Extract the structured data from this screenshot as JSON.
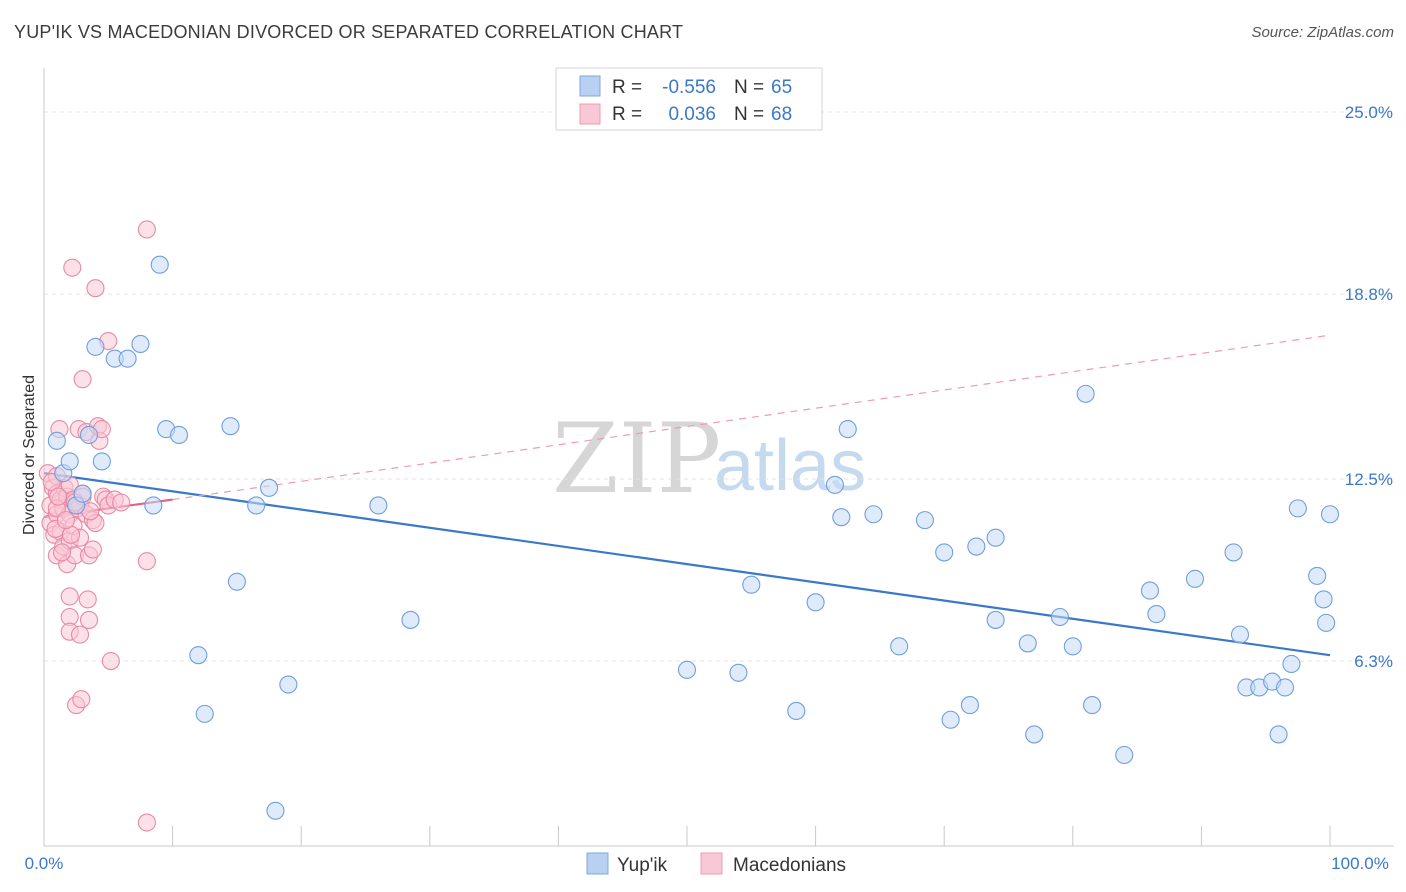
{
  "title": "YUP'IK VS MACEDONIAN DIVORCED OR SEPARATED CORRELATION CHART",
  "source": "Source: ZipAtlas.com",
  "watermark": {
    "zip": "ZIP",
    "atlas": "atlas"
  },
  "colors": {
    "blue": "#3a78c9",
    "blue_fill": "#b8d0f2",
    "pink": "#e8607f",
    "pink_fill": "#f5b8c9",
    "grid": "#e3e3e3"
  },
  "legend": {
    "r_label": "R =",
    "n_label": "N =",
    "blue": {
      "r": "-0.556",
      "n": "65"
    },
    "pink": {
      "r": "0.036",
      "n": "68"
    }
  },
  "chart_data": {
    "type": "scatter",
    "title": "YUP'IK VS MACEDONIAN DIVORCED OR SEPARATED CORRELATION CHART",
    "xlabel": "",
    "ylabel": "Divorced or Separated",
    "xlim": [
      0,
      100
    ],
    "ylim": [
      0,
      26.5
    ],
    "x_tick_labels": [
      "0.0%",
      "100.0%"
    ],
    "y_ticks": [
      6.3,
      12.5,
      18.8,
      25.0
    ],
    "y_tick_labels": [
      "6.3%",
      "12.5%",
      "18.8%",
      "25.0%"
    ],
    "grid": true,
    "legend_position": "bottom",
    "series": [
      {
        "name": "Yup'ik",
        "color": "#3a78c9",
        "trend": {
          "x0": 0,
          "y0": 12.7,
          "x1": 100,
          "y1": 6.5
        },
        "points": [
          [
            1,
            13.8
          ],
          [
            1.5,
            12.7
          ],
          [
            2,
            13.1
          ],
          [
            2.5,
            11.6
          ],
          [
            3,
            12.0
          ],
          [
            3.5,
            14.0
          ],
          [
            4,
            17.0
          ],
          [
            4.5,
            13.1
          ],
          [
            5.5,
            16.6
          ],
          [
            6.5,
            16.6
          ],
          [
            7.5,
            17.1
          ],
          [
            8.5,
            11.6
          ],
          [
            9,
            19.8
          ],
          [
            9.5,
            14.2
          ],
          [
            10.5,
            14.0
          ],
          [
            12,
            6.5
          ],
          [
            12.5,
            4.5
          ],
          [
            14.5,
            14.3
          ],
          [
            15,
            9.0
          ],
          [
            16.5,
            11.6
          ],
          [
            17.5,
            12.2
          ],
          [
            18,
            1.2
          ],
          [
            19,
            5.5
          ],
          [
            26,
            11.6
          ],
          [
            28.5,
            7.7
          ],
          [
            50,
            6.0
          ],
          [
            55,
            8.9
          ],
          [
            58.5,
            4.6
          ],
          [
            60,
            8.3
          ],
          [
            61.5,
            12.3
          ],
          [
            62,
            11.2
          ],
          [
            62.5,
            14.2
          ],
          [
            64.5,
            11.3
          ],
          [
            66.5,
            6.8
          ],
          [
            68.5,
            11.1
          ],
          [
            70,
            10.0
          ],
          [
            70.5,
            4.3
          ],
          [
            72,
            4.8
          ],
          [
            72.5,
            10.2
          ],
          [
            74,
            7.7
          ],
          [
            76.5,
            6.9
          ],
          [
            77,
            3.8
          ],
          [
            79,
            7.8
          ],
          [
            80,
            6.8
          ],
          [
            81,
            15.4
          ],
          [
            81.5,
            4.8
          ],
          [
            84,
            3.1
          ],
          [
            86,
            8.7
          ],
          [
            86.5,
            7.9
          ],
          [
            89.5,
            9.1
          ],
          [
            92.5,
            10.0
          ],
          [
            93,
            7.2
          ],
          [
            93.5,
            5.4
          ],
          [
            94.5,
            5.4
          ],
          [
            95.5,
            5.6
          ],
          [
            96,
            3.8
          ],
          [
            96.5,
            5.4
          ],
          [
            97,
            6.2
          ],
          [
            99,
            9.2
          ],
          [
            99.5,
            8.4
          ],
          [
            99.7,
            7.6
          ],
          [
            100,
            11.3
          ],
          [
            97.5,
            11.5
          ],
          [
            74,
            10.5
          ],
          [
            54,
            5.9
          ]
        ]
      },
      {
        "name": "Macedonians",
        "color": "#e8607f",
        "trend": {
          "x0": 0,
          "y0": 11.2,
          "x1": 10,
          "y1": 11.8
        },
        "trend_extended": {
          "x0": 10,
          "y0": 11.8,
          "x1": 100,
          "y1": 17.4
        },
        "points": [
          [
            0.3,
            12.7
          ],
          [
            0.5,
            11.6
          ],
          [
            0.5,
            11.0
          ],
          [
            0.7,
            12.2
          ],
          [
            0.8,
            10.6
          ],
          [
            1,
            12.0
          ],
          [
            1,
            11.3
          ],
          [
            1,
            9.9
          ],
          [
            1,
            12.6
          ],
          [
            1.2,
            14.2
          ],
          [
            1.3,
            11.8
          ],
          [
            1.3,
            10.7
          ],
          [
            1.5,
            11.5
          ],
          [
            1.5,
            10.2
          ],
          [
            1.6,
            12.2
          ],
          [
            1.8,
            11.9
          ],
          [
            1.8,
            9.6
          ],
          [
            2,
            11.3
          ],
          [
            2,
            10.4
          ],
          [
            2,
            8.5
          ],
          [
            2,
            7.8
          ],
          [
            2,
            7.3
          ],
          [
            2,
            12.3
          ],
          [
            2.2,
            19.7
          ],
          [
            2.3,
            11.8
          ],
          [
            2.3,
            10.9
          ],
          [
            2.4,
            9.9
          ],
          [
            2.5,
            4.8
          ],
          [
            2.6,
            11.5
          ],
          [
            2.7,
            14.2
          ],
          [
            2.8,
            11.6
          ],
          [
            2.8,
            10.5
          ],
          [
            2.8,
            7.2
          ],
          [
            2.9,
            5.0
          ],
          [
            3,
            15.9
          ],
          [
            3,
            12.0
          ],
          [
            3,
            11.9
          ],
          [
            3.3,
            14.1
          ],
          [
            3.3,
            11.3
          ],
          [
            3.4,
            8.4
          ],
          [
            3.5,
            9.9
          ],
          [
            3.5,
            7.7
          ],
          [
            3.8,
            10.1
          ],
          [
            3.8,
            11.1
          ],
          [
            4,
            19.0
          ],
          [
            4,
            11.0
          ],
          [
            4.2,
            14.3
          ],
          [
            4.3,
            13.8
          ],
          [
            4.5,
            14.2
          ],
          [
            4.6,
            11.9
          ],
          [
            4.8,
            11.8
          ],
          [
            5,
            17.2
          ],
          [
            5,
            11.6
          ],
          [
            5.2,
            6.3
          ],
          [
            5.5,
            11.8
          ],
          [
            6,
            11.7
          ],
          [
            8,
            21.0
          ],
          [
            8,
            9.7
          ],
          [
            8,
            0.8
          ],
          [
            1,
            11.5
          ],
          [
            0.6,
            12.4
          ],
          [
            0.9,
            10.8
          ],
          [
            1.4,
            10.0
          ],
          [
            1.1,
            11.9
          ],
          [
            2.1,
            10.6
          ],
          [
            1.7,
            11.1
          ],
          [
            2.4,
            11.7
          ],
          [
            3.6,
            11.4
          ]
        ]
      }
    ]
  },
  "bottom_legend": {
    "blue": "Yup'ik",
    "pink": "Macedonians"
  }
}
